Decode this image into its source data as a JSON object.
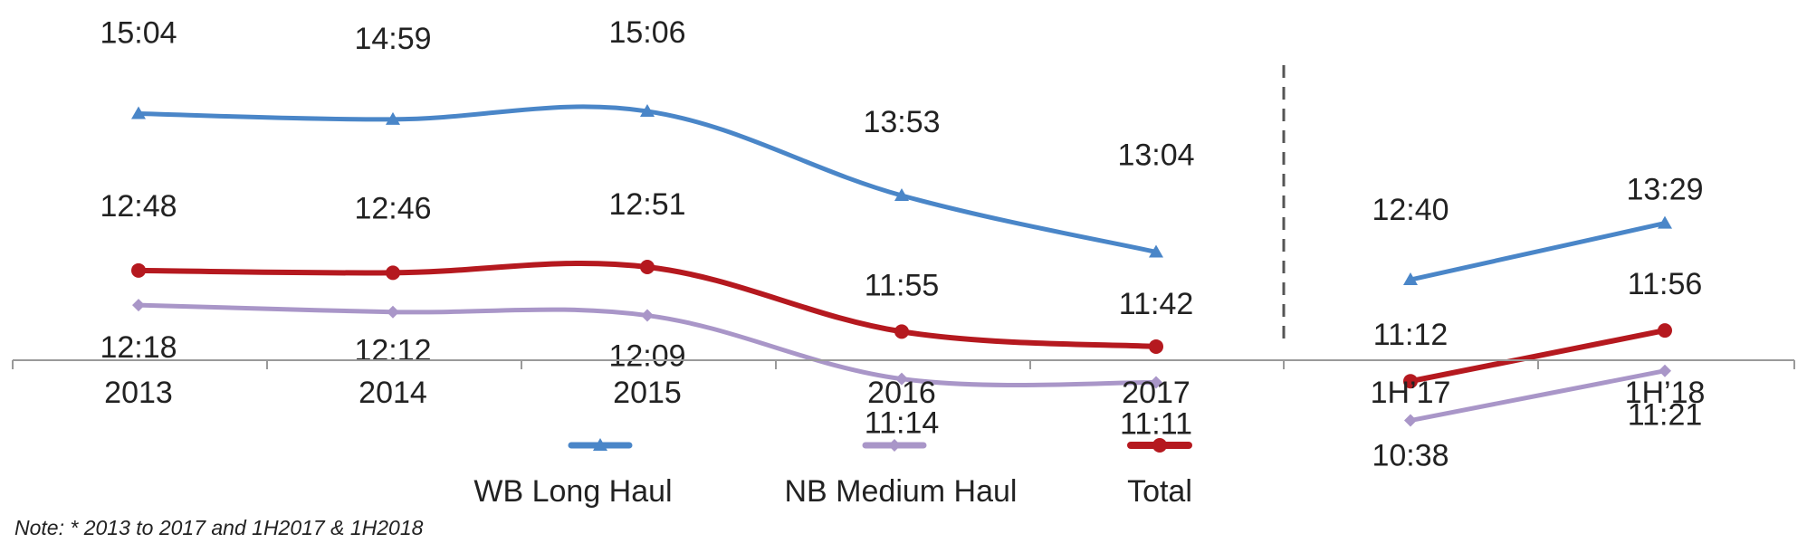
{
  "chart_data": {
    "type": "line",
    "categories": [
      "2013",
      "2014",
      "2015",
      "2016",
      "2017",
      "1H’17",
      "1H’18"
    ],
    "groups": [
      [
        0,
        1,
        2,
        3,
        4
      ],
      [
        5,
        6
      ]
    ],
    "series": [
      {
        "name": "WB Long Haul",
        "color": "#4a86c8",
        "marker": "triangle",
        "values": [
          904,
          899,
          906,
          833,
          784,
          760,
          809
        ],
        "labels": [
          "15:04",
          "14:59",
          "15:06",
          "13:53",
          "13:04",
          "12:40",
          "13:29"
        ]
      },
      {
        "name": "NB Medium Haul",
        "color": "#a996c8",
        "marker": "diamond",
        "values": [
          738,
          732,
          729,
          674,
          671,
          638,
          681
        ],
        "labels": [
          "12:18",
          "12:12",
          "12:09",
          "11:14",
          "11:11",
          "10:38",
          "11:21"
        ]
      },
      {
        "name": "Total",
        "color": "#b5191f",
        "marker": "circle",
        "values": [
          768,
          766,
          771,
          715,
          702,
          672,
          716
        ],
        "labels": [
          "12:48",
          "12:46",
          "12:51",
          "11:55",
          "11:42",
          "11:12",
          "11:56"
        ]
      }
    ],
    "legend_position": "bottom-center",
    "grid": false,
    "note": "Note: * 2013 to 2017 and 1H2017 & 1H2018"
  }
}
